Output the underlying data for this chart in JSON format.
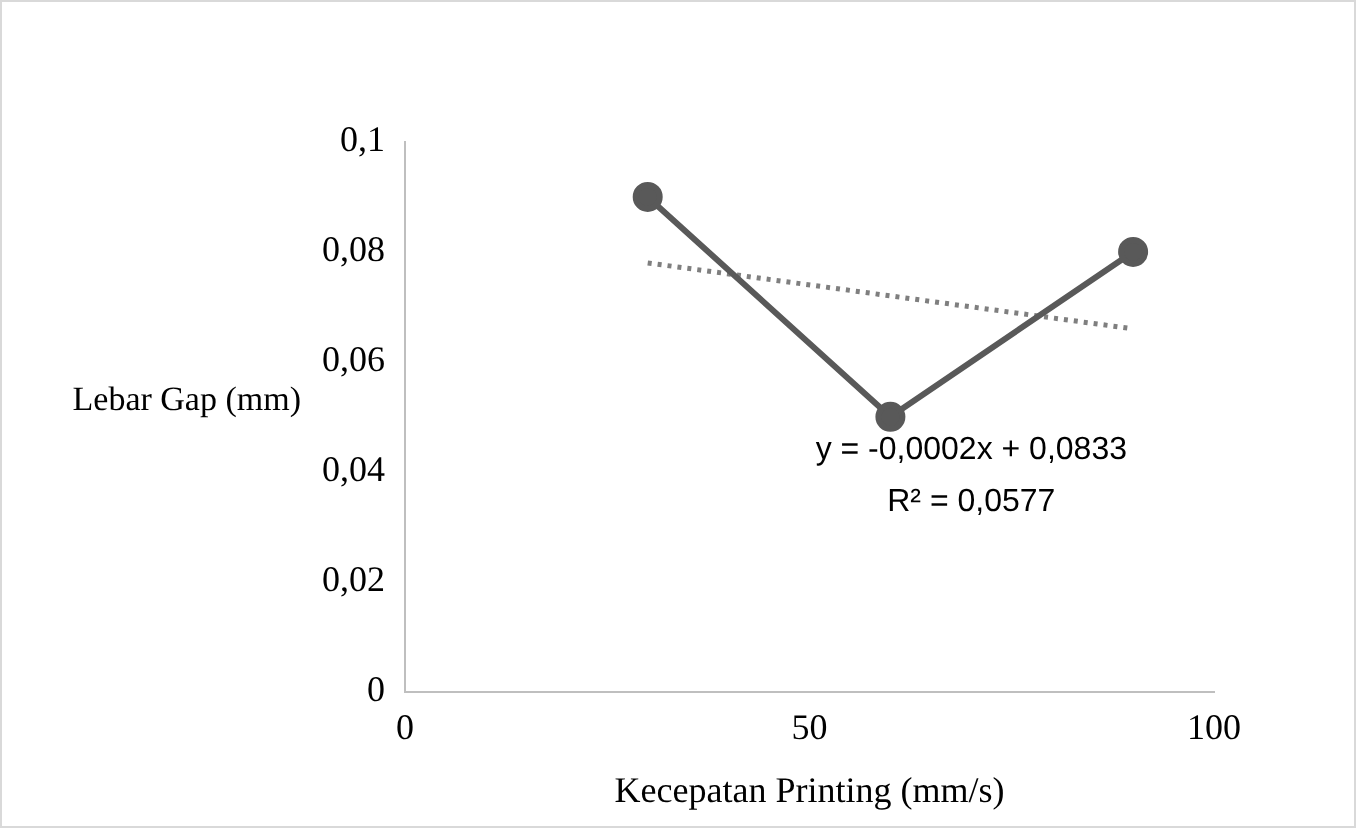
{
  "chart_data": {
    "type": "line",
    "xlabel": "Kecepatan Printing (mm/s)",
    "ylabel": "Lebar Gap (mm)",
    "xlim": [
      0,
      100
    ],
    "xticks": [
      0,
      50,
      100
    ],
    "ylim": [
      0,
      0.1
    ],
    "yticks": [
      {
        "value": 0,
        "label": "0"
      },
      {
        "value": 0.02,
        "label": "0,02"
      },
      {
        "value": 0.04,
        "label": "0,04"
      },
      {
        "value": 0.06,
        "label": "0,06"
      },
      {
        "value": 0.08,
        "label": "0,08"
      },
      {
        "value": 0.1,
        "label": "0,1"
      }
    ],
    "grid": false,
    "legend": false,
    "series": [
      {
        "color": "#595959",
        "x": [
          30,
          60,
          90
        ],
        "values": [
          0.09,
          0.05,
          0.08
        ],
        "marker": "circle",
        "line_style": "solid"
      },
      {
        "color": "#7f7f7f",
        "x": [
          30,
          90
        ],
        "values": [
          0.078,
          0.066
        ],
        "marker": "none",
        "line_style": "dotted"
      }
    ],
    "annotations": [
      "y = -0,0002x + 0,0833",
      "R² = 0,0577"
    ]
  }
}
